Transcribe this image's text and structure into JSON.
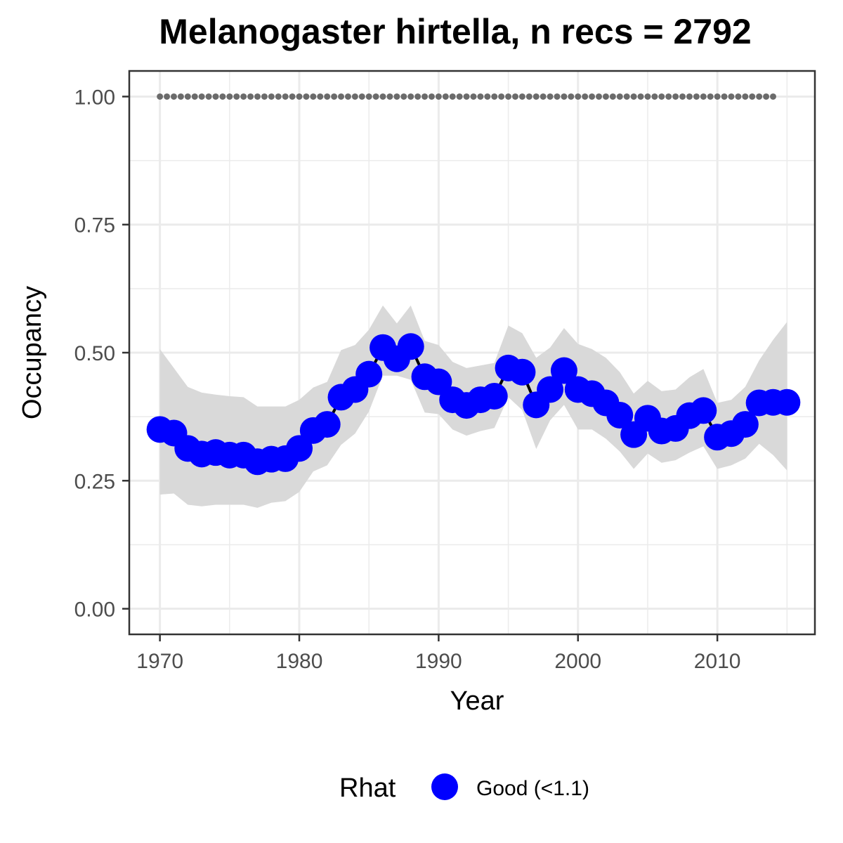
{
  "chart_data": {
    "type": "line",
    "title": "Melanogaster hirtella, n recs = 2792",
    "xlabel": "Year",
    "ylabel": "Occupancy",
    "xlim": [
      1967.8,
      2017.0
    ],
    "ylim": [
      -0.05,
      1.05
    ],
    "x_ticks": [
      1970,
      1980,
      1990,
      2000,
      2010
    ],
    "x_tick_labels": [
      "1970",
      "1980",
      "1990",
      "2000",
      "2010"
    ],
    "x_minor_ticks": [
      1975,
      1985,
      1995,
      2005,
      2015
    ],
    "y_ticks": [
      0.0,
      0.25,
      0.5,
      0.75,
      1.0
    ],
    "y_tick_labels": [
      "0.00",
      "0.25",
      "0.50",
      "0.75",
      "1.00"
    ],
    "y_minor_ticks": [
      0.125,
      0.375,
      0.625,
      0.875
    ],
    "grid": true,
    "legend": {
      "title": "Rhat",
      "position": "bottom",
      "entries": [
        {
          "label": "Good (<1.1)",
          "color": "#0000ff"
        }
      ]
    },
    "colors": {
      "points": "#0000ff",
      "line": "#000000",
      "ribbon": "#d9d9d9",
      "reference_dots": "#6b6b6b",
      "grid": "#ebebeb",
      "panel_border": "#333333"
    },
    "reference_line": {
      "y": 1.0,
      "x_start": 1970,
      "x_end": 2014,
      "style": "dotted"
    },
    "x": [
      1970,
      1971,
      1972,
      1973,
      1974,
      1975,
      1976,
      1977,
      1978,
      1979,
      1980,
      1981,
      1982,
      1983,
      1984,
      1985,
      1986,
      1987,
      1988,
      1989,
      1990,
      1991,
      1992,
      1993,
      1994,
      1995,
      1996,
      1997,
      1998,
      1999,
      2000,
      2001,
      2002,
      2003,
      2004,
      2005,
      2006,
      2007,
      2008,
      2009,
      2010,
      2011,
      2012,
      2013,
      2014,
      2015
    ],
    "series": [
      {
        "values": [
          0.35,
          0.343,
          0.313,
          0.302,
          0.305,
          0.3,
          0.3,
          0.287,
          0.292,
          0.293,
          0.313,
          0.348,
          0.36,
          0.413,
          0.428,
          0.458,
          0.51,
          0.488,
          0.512,
          0.453,
          0.443,
          0.408,
          0.397,
          0.408,
          0.415,
          0.47,
          0.462,
          0.398,
          0.428,
          0.465,
          0.428,
          0.42,
          0.402,
          0.378,
          0.34,
          0.372,
          0.347,
          0.352,
          0.377,
          0.387,
          0.335,
          0.342,
          0.36,
          0.402,
          0.403,
          0.403
        ],
        "lower": [
          0.223,
          0.225,
          0.203,
          0.2,
          0.203,
          0.203,
          0.203,
          0.197,
          0.207,
          0.21,
          0.228,
          0.268,
          0.28,
          0.32,
          0.342,
          0.385,
          0.455,
          0.455,
          0.447,
          0.383,
          0.38,
          0.35,
          0.338,
          0.347,
          0.353,
          0.413,
          0.388,
          0.312,
          0.368,
          0.398,
          0.35,
          0.35,
          0.332,
          0.307,
          0.273,
          0.303,
          0.285,
          0.29,
          0.305,
          0.317,
          0.273,
          0.28,
          0.293,
          0.322,
          0.3,
          0.27
        ],
        "upper": [
          0.507,
          0.47,
          0.433,
          0.422,
          0.418,
          0.415,
          0.413,
          0.395,
          0.395,
          0.395,
          0.408,
          0.432,
          0.443,
          0.505,
          0.515,
          0.545,
          0.592,
          0.557,
          0.592,
          0.523,
          0.515,
          0.482,
          0.47,
          0.475,
          0.48,
          0.553,
          0.538,
          0.49,
          0.51,
          0.548,
          0.517,
          0.507,
          0.49,
          0.462,
          0.42,
          0.445,
          0.425,
          0.428,
          0.452,
          0.468,
          0.402,
          0.408,
          0.433,
          0.485,
          0.525,
          0.56
        ]
      }
    ]
  }
}
